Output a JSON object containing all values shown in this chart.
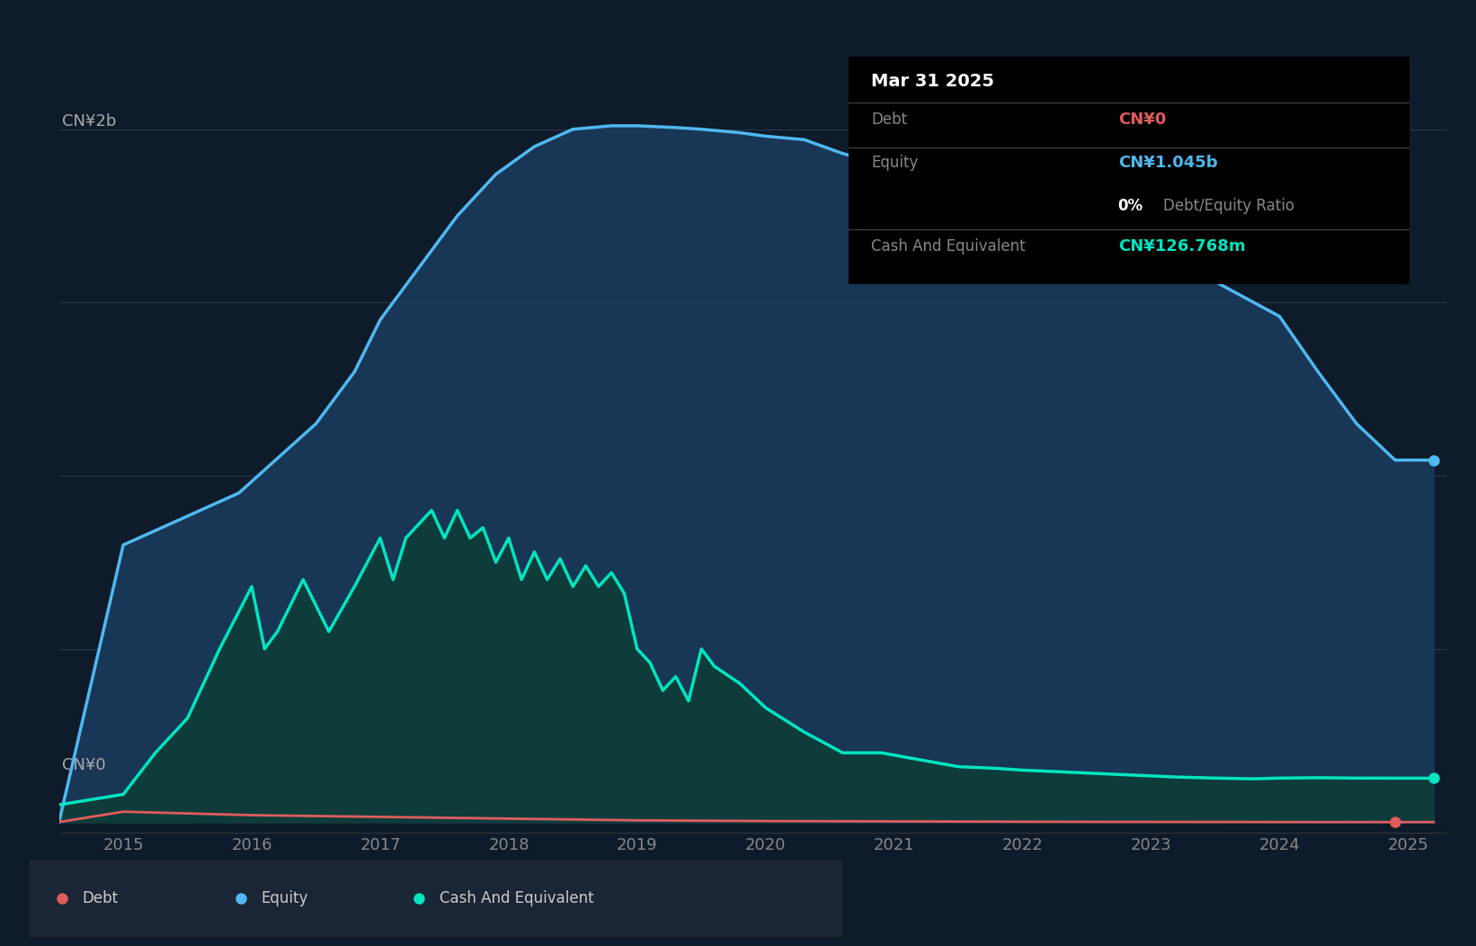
{
  "background_color": "#0d1b2a",
  "plot_bg_color": "#0d1b2a",
  "y_label_top": "CN¥2b",
  "y_label_bottom": "CN¥0",
  "x_ticks": [
    2015,
    2016,
    2017,
    2018,
    2019,
    2020,
    2021,
    2022,
    2023,
    2024,
    2025
  ],
  "equity_color": "#4fb8f0",
  "equity_fill": "#1a3a5c",
  "debt_color": "#e05c5c",
  "cash_color": "#00e5c0",
  "cash_fill": "#0d3d3a",
  "tooltip_bg": "#000000",
  "tooltip_title": "Mar 31 2025",
  "tooltip_debt_label": "Debt",
  "tooltip_debt_value": "CN¥0",
  "tooltip_debt_color": "#e05c5c",
  "tooltip_equity_label": "Equity",
  "tooltip_equity_value": "CN¥1.045b",
  "tooltip_equity_color": "#4fb8f0",
  "tooltip_ratio_value": "0%",
  "tooltip_ratio_label": "Debt/Equity Ratio",
  "tooltip_cash_label": "Cash And Equivalent",
  "tooltip_cash_value": "CN¥126.768m",
  "tooltip_cash_color": "#00e5c0",
  "legend_debt_label": "Debt",
  "legend_equity_label": "Equity",
  "legend_cash_label": "Cash And Equivalent",
  "equity_x": [
    2014.5,
    2015.0,
    2015.3,
    2015.6,
    2015.9,
    2016.2,
    2016.5,
    2016.8,
    2017.0,
    2017.3,
    2017.6,
    2017.9,
    2018.2,
    2018.5,
    2018.8,
    2019.0,
    2019.3,
    2019.5,
    2019.8,
    2020.0,
    2020.3,
    2020.6,
    2020.9,
    2021.2,
    2021.5,
    2021.8,
    2022.0,
    2022.3,
    2022.6,
    2022.9,
    2023.2,
    2023.5,
    2023.8,
    2024.0,
    2024.3,
    2024.6,
    2024.9,
    2025.2
  ],
  "equity_y": [
    0,
    800000000,
    850000000,
    900000000,
    950000000,
    1050000000,
    1150000000,
    1300000000,
    1450000000,
    1600000000,
    1750000000,
    1870000000,
    1950000000,
    2000000000,
    2010000000,
    2010000000,
    2005000000,
    2000000000,
    1990000000,
    1980000000,
    1970000000,
    1930000000,
    1900000000,
    1860000000,
    1830000000,
    1800000000,
    1780000000,
    1750000000,
    1720000000,
    1690000000,
    1620000000,
    1560000000,
    1500000000,
    1460000000,
    1300000000,
    1150000000,
    1045000000,
    1045000000
  ],
  "debt_x": [
    2014.5,
    2015.0,
    2016.0,
    2017.0,
    2018.0,
    2019.0,
    2020.0,
    2021.0,
    2022.0,
    2023.0,
    2024.0,
    2024.9,
    2025.2
  ],
  "debt_y": [
    0,
    30000000,
    20000000,
    15000000,
    10000000,
    5000000,
    3000000,
    2000000,
    1000000,
    500000,
    200000,
    0,
    0
  ],
  "cash_x": [
    2014.5,
    2015.0,
    2015.25,
    2015.5,
    2015.75,
    2016.0,
    2016.1,
    2016.2,
    2016.4,
    2016.6,
    2016.8,
    2017.0,
    2017.1,
    2017.2,
    2017.4,
    2017.5,
    2017.6,
    2017.7,
    2017.8,
    2017.9,
    2018.0,
    2018.1,
    2018.2,
    2018.3,
    2018.4,
    2018.5,
    2018.6,
    2018.7,
    2018.8,
    2018.9,
    2019.0,
    2019.1,
    2019.2,
    2019.3,
    2019.4,
    2019.5,
    2019.6,
    2019.8,
    2020.0,
    2020.3,
    2020.6,
    2020.9,
    2021.2,
    2021.5,
    2021.8,
    2022.0,
    2022.3,
    2022.6,
    2022.9,
    2023.2,
    2023.5,
    2023.8,
    2024.0,
    2024.3,
    2024.6,
    2024.9,
    2025.2
  ],
  "cash_y": [
    50000000,
    80000000,
    200000000,
    300000000,
    500000000,
    680000000,
    500000000,
    550000000,
    700000000,
    550000000,
    680000000,
    820000000,
    700000000,
    820000000,
    900000000,
    820000000,
    900000000,
    820000000,
    850000000,
    750000000,
    820000000,
    700000000,
    780000000,
    700000000,
    760000000,
    680000000,
    740000000,
    680000000,
    720000000,
    660000000,
    500000000,
    460000000,
    380000000,
    420000000,
    350000000,
    500000000,
    450000000,
    400000000,
    330000000,
    260000000,
    200000000,
    200000000,
    180000000,
    160000000,
    155000000,
    150000000,
    145000000,
    140000000,
    135000000,
    130000000,
    127000000,
    125000000,
    127000000,
    128000000,
    127000000,
    126768000,
    126768000
  ]
}
